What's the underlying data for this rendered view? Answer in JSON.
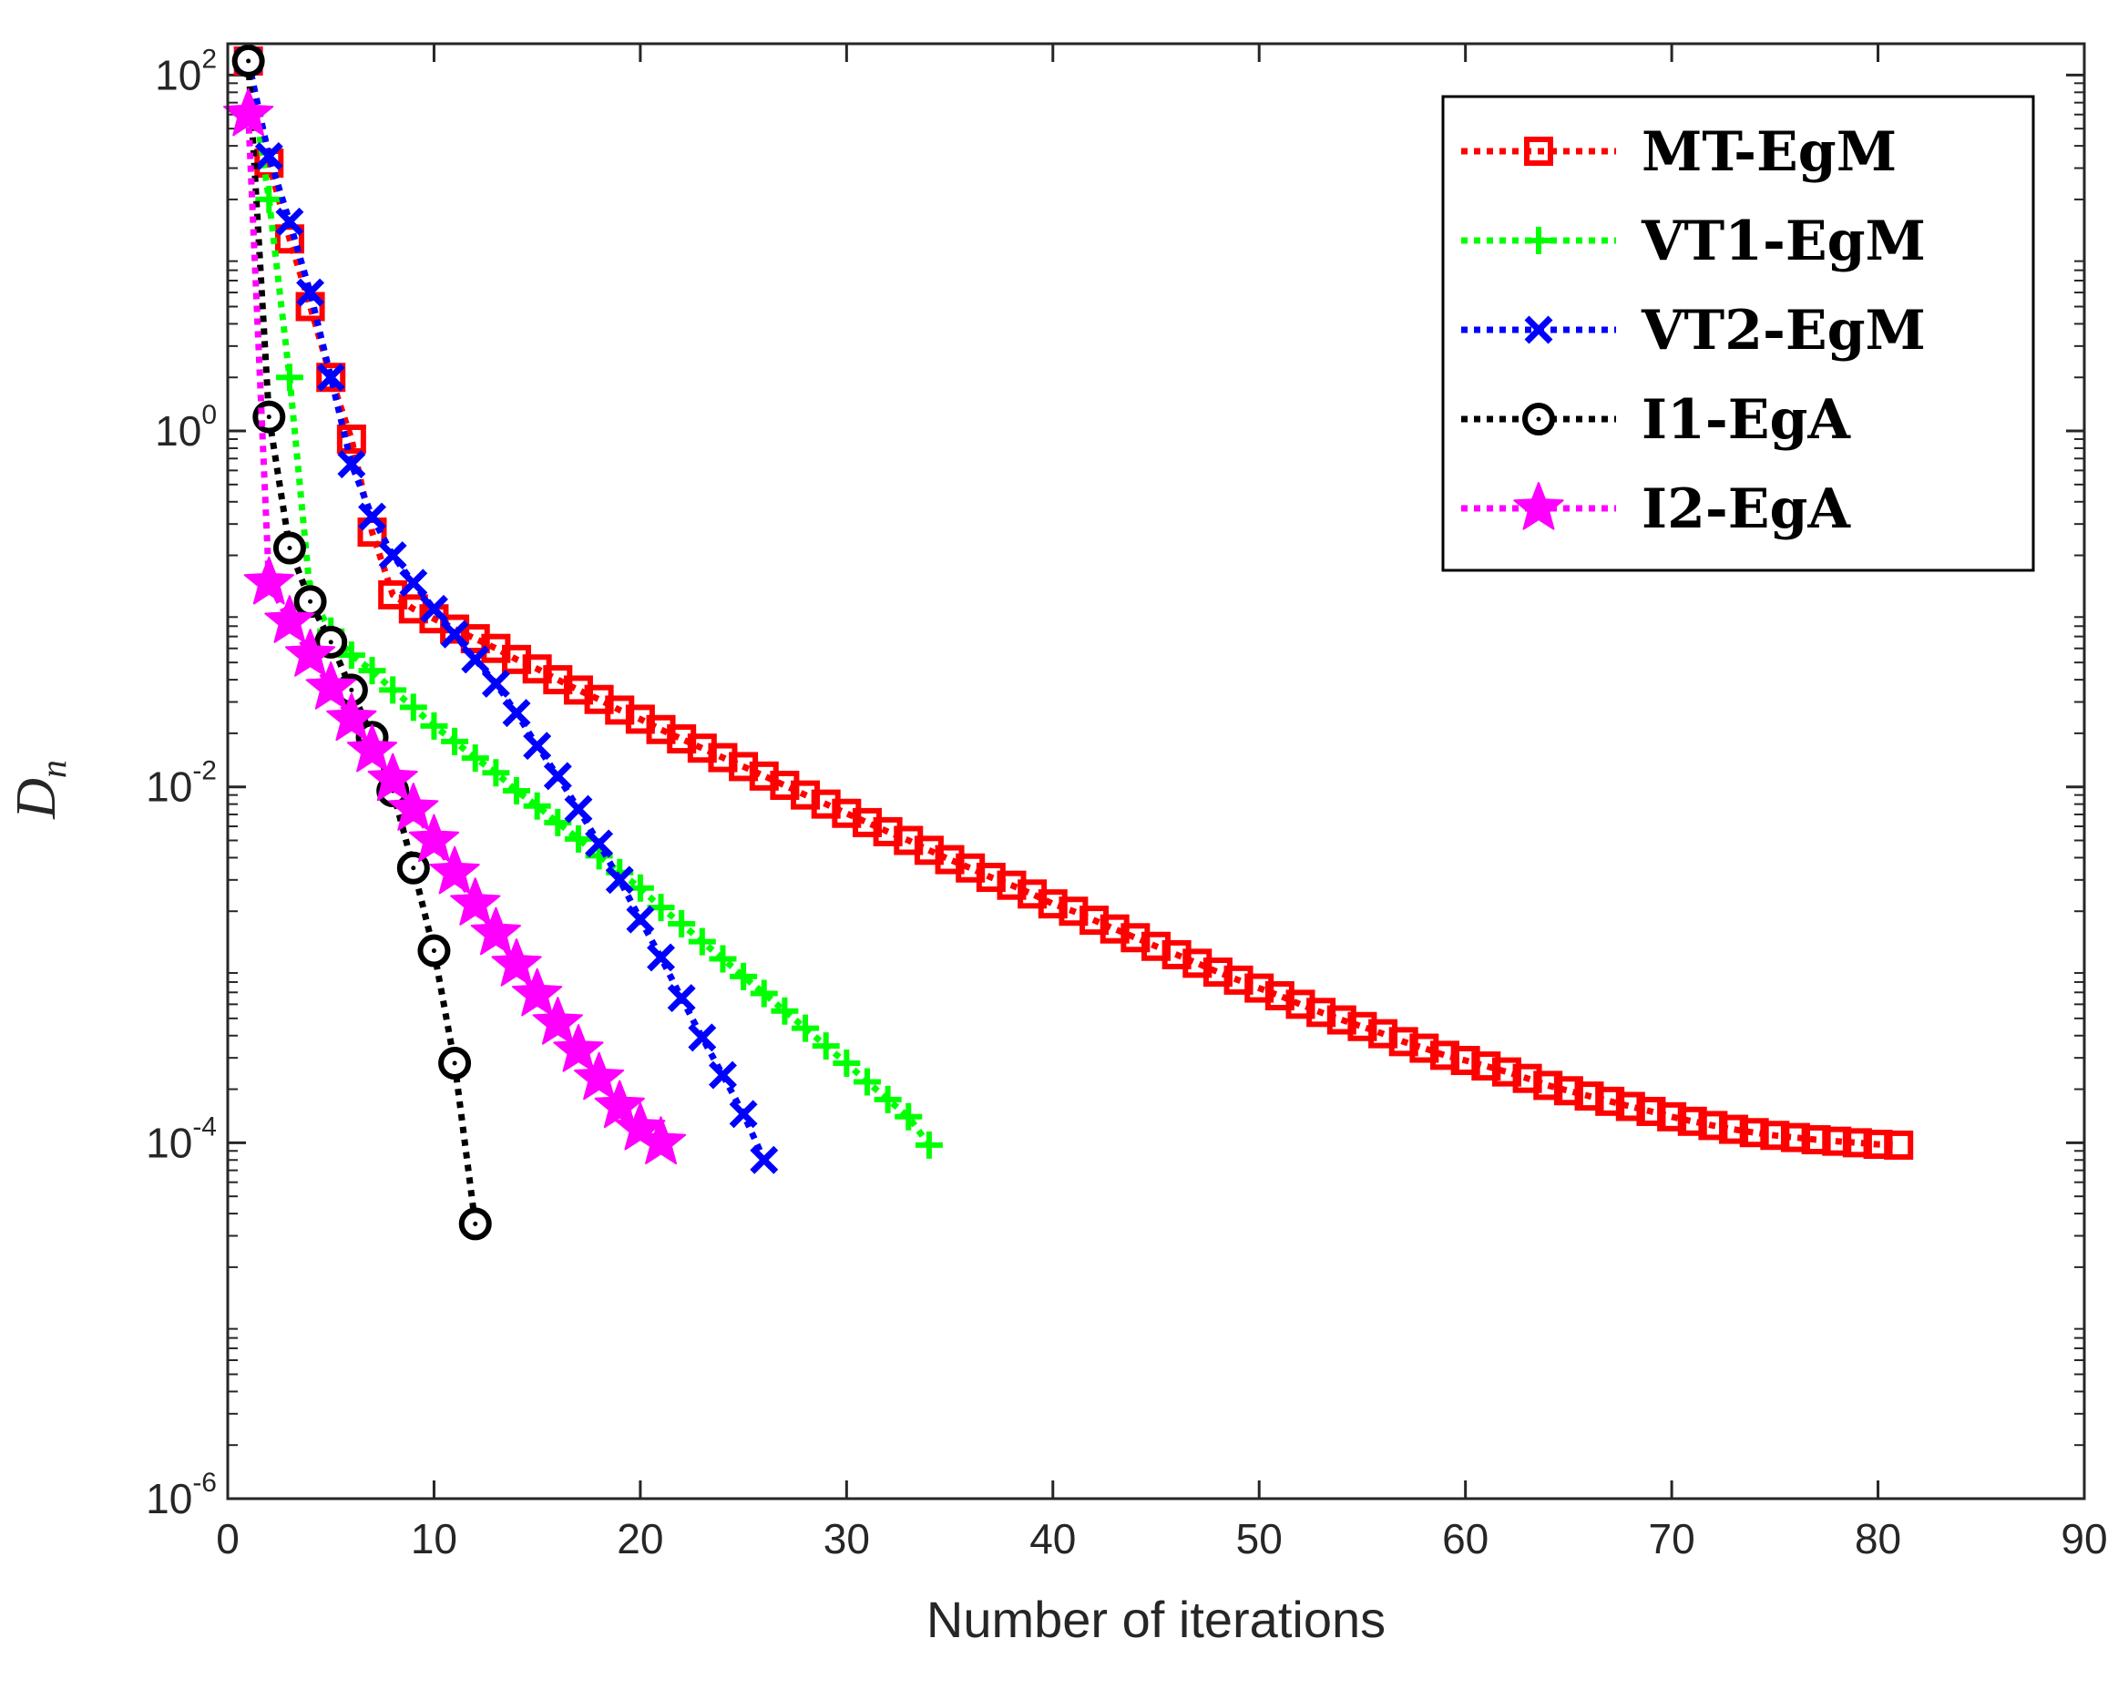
{
  "chart_data": {
    "type": "line",
    "title": "",
    "xlabel": "Number of iterations",
    "ylabel": "D_n",
    "ylabel_main": "D",
    "ylabel_sub": "n",
    "xlim": [
      0,
      90
    ],
    "ylim": [
      1e-06,
      150
    ],
    "yscale": "log",
    "grid": false,
    "legend_position": "top-right",
    "x_ticks": [
      {
        "value": 0,
        "label": "0"
      },
      {
        "value": 10,
        "label": "10"
      },
      {
        "value": 20,
        "label": "20"
      },
      {
        "value": 30,
        "label": "30"
      },
      {
        "value": 40,
        "label": "40"
      },
      {
        "value": 50,
        "label": "50"
      },
      {
        "value": 60,
        "label": "60"
      },
      {
        "value": 70,
        "label": "70"
      },
      {
        "value": 80,
        "label": "80"
      },
      {
        "value": 90,
        "label": "90"
      }
    ],
    "y_ticks": [
      {
        "value": 1e-06,
        "base": "10",
        "exp": "-6"
      },
      {
        "value": 0.0001,
        "base": "10",
        "exp": "-4"
      },
      {
        "value": 0.01,
        "base": "10",
        "exp": "-2"
      },
      {
        "value": 1,
        "base": "10",
        "exp": "0"
      },
      {
        "value": 100,
        "base": "10",
        "exp": "2"
      }
    ],
    "series": [
      {
        "name": "MT-EgM",
        "color": "#ff0000",
        "marker": "square",
        "x": [
          1,
          2,
          3,
          4,
          5,
          6,
          7,
          8,
          9,
          10,
          11,
          12,
          13,
          14,
          15,
          16,
          17,
          18,
          19,
          20,
          21,
          22,
          23,
          24,
          25,
          26,
          27,
          28,
          29,
          30,
          31,
          32,
          33,
          34,
          35,
          36,
          37,
          38,
          39,
          40,
          41,
          42,
          43,
          44,
          45,
          46,
          47,
          48,
          49,
          50,
          51,
          52,
          53,
          54,
          55,
          56,
          57,
          58,
          59,
          60,
          61,
          62,
          63,
          64,
          65,
          66,
          67,
          68,
          69,
          70,
          71,
          72,
          73,
          74,
          75,
          76,
          77,
          78,
          79,
          80,
          81
        ],
        "y": [
          120,
          32,
          12,
          5,
          2,
          0.9,
          0.27,
          0.12,
          0.1,
          0.088,
          0.077,
          0.068,
          0.06,
          0.052,
          0.046,
          0.04,
          0.035,
          0.031,
          0.027,
          0.024,
          0.021,
          0.0186,
          0.0165,
          0.0146,
          0.013,
          0.0115,
          0.0102,
          0.009,
          0.008,
          0.0071,
          0.0063,
          0.0056,
          0.005,
          0.0044,
          0.0039,
          0.0035,
          0.0031,
          0.0028,
          0.0025,
          0.0022,
          0.002,
          0.00178,
          0.00159,
          0.00142,
          0.00127,
          0.00114,
          0.00102,
          0.00091,
          0.00082,
          0.00074,
          0.00067,
          0.0006,
          0.00054,
          0.00049,
          0.00045,
          0.00041,
          0.00037,
          0.00034,
          0.00031,
          0.00029,
          0.00027,
          0.00025,
          0.00023,
          0.00021,
          0.000196,
          0.000183,
          0.000171,
          0.00016,
          0.00015,
          0.00014,
          0.000132,
          0.000125,
          0.000119,
          0.000114,
          0.00011,
          0.000107,
          0.000104,
          0.000102,
          0.0001,
          9.8e-05,
          9.7e-05
        ]
      },
      {
        "name": "VT1-EgM",
        "color": "#00ff00",
        "marker": "plus",
        "x": [
          1,
          2,
          3,
          4,
          5,
          6,
          7,
          8,
          9,
          10,
          11,
          12,
          13,
          14,
          15,
          16,
          17,
          18,
          19,
          20,
          21,
          22,
          23,
          24,
          25,
          26,
          27,
          28,
          29,
          30,
          31,
          32,
          33,
          34
        ],
        "y": [
          120,
          20,
          2,
          0.12,
          0.075,
          0.055,
          0.045,
          0.035,
          0.028,
          0.022,
          0.018,
          0.0145,
          0.012,
          0.0095,
          0.0078,
          0.0063,
          0.0051,
          0.0041,
          0.0033,
          0.0027,
          0.0021,
          0.0017,
          0.00135,
          0.00108,
          0.00086,
          0.00069,
          0.00055,
          0.00044,
          0.00035,
          0.00028,
          0.00022,
          0.000175,
          0.00014,
          9.7e-05
        ]
      },
      {
        "name": "VT2-EgM",
        "color": "#0000ff",
        "marker": "x",
        "x": [
          1,
          2,
          3,
          4,
          5,
          6,
          7,
          8,
          9,
          10,
          11,
          12,
          13,
          14,
          15,
          16,
          17,
          18,
          19,
          20,
          21,
          22,
          23,
          24,
          25,
          26
        ],
        "y": [
          120,
          35,
          15,
          6,
          2,
          0.65,
          0.33,
          0.2,
          0.14,
          0.1,
          0.072,
          0.052,
          0.038,
          0.026,
          0.017,
          0.0115,
          0.0075,
          0.0048,
          0.003,
          0.0018,
          0.0011,
          0.00065,
          0.00039,
          0.00024,
          0.000145,
          8e-05
        ]
      },
      {
        "name": "I1-EgA",
        "color": "#000000",
        "marker": "circle",
        "x": [
          1,
          2,
          3,
          4,
          5,
          6,
          7,
          8,
          9,
          10,
          11,
          12
        ],
        "y": [
          120,
          1.2,
          0.22,
          0.11,
          0.065,
          0.035,
          0.019,
          0.0095,
          0.0035,
          0.0012,
          0.00028,
          3.5e-05
        ]
      },
      {
        "name": "I2-EgA",
        "color": "#ff00ff",
        "marker": "star",
        "x": [
          1,
          2,
          3,
          4,
          5,
          6,
          7,
          8,
          9,
          10,
          11,
          12,
          13,
          14,
          15,
          16,
          17,
          18,
          19,
          20,
          21
        ],
        "y": [
          60,
          0.14,
          0.085,
          0.055,
          0.036,
          0.024,
          0.016,
          0.011,
          0.0075,
          0.005,
          0.0033,
          0.0022,
          0.0015,
          0.001,
          0.00068,
          0.00047,
          0.00033,
          0.00023,
          0.00016,
          0.00012,
          0.0001
        ]
      }
    ]
  }
}
